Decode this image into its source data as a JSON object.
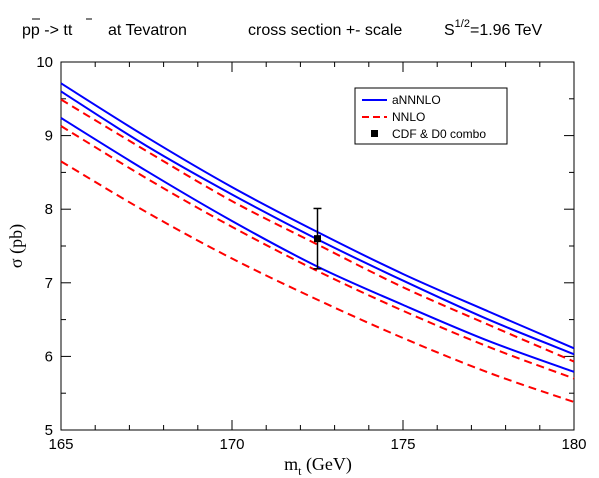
{
  "chart_data": {
    "type": "line",
    "title": {
      "process_prefix": "p",
      "process_pbar": "p",
      "process_arrow": " -> t",
      "process_tbar": "t",
      "collider": "at  Tevatron",
      "description": "cross section +- scale",
      "energy_base": "S",
      "energy_exp": "1/2",
      "energy_value": "=1.96 TeV"
    },
    "xlabel_main": "m",
    "xlabel_sub": "t",
    "xlabel_unit": " (GeV)",
    "ylabel": "σ (pb)",
    "xlim": [
      165,
      180
    ],
    "ylim": [
      5,
      10
    ],
    "x_ticks": [
      "165",
      "170",
      "175",
      "180"
    ],
    "y_ticks": [
      "5",
      "6",
      "7",
      "8",
      "9",
      "10"
    ],
    "legend_position": "top-right",
    "x": [
      165,
      167.5,
      170,
      172.5,
      175,
      177.5,
      180
    ],
    "series": [
      {
        "name": "aNNNLO",
        "style": "solid",
        "color": "#0000ff",
        "values": [
          9.71,
          8.98,
          8.3,
          7.69,
          7.12,
          6.61,
          6.11
        ]
      },
      {
        "name": "",
        "style": "solid",
        "color": "#0000ff",
        "values": [
          9.6,
          8.86,
          8.2,
          7.59,
          7.03,
          6.5,
          6.03
        ]
      },
      {
        "name": "",
        "style": "solid",
        "color": "#0000ff",
        "values": [
          9.24,
          8.52,
          7.84,
          7.22,
          6.7,
          6.21,
          5.79
        ]
      },
      {
        "name": "NNLO",
        "style": "dashed",
        "color": "#ff0000",
        "values": [
          9.49,
          8.79,
          8.11,
          7.52,
          6.94,
          6.43,
          5.93
        ]
      },
      {
        "name": "",
        "style": "dashed",
        "color": "#ff0000",
        "values": [
          9.13,
          8.42,
          7.76,
          7.16,
          6.62,
          6.13,
          5.7
        ]
      },
      {
        "name": "",
        "style": "dashed",
        "color": "#ff0000",
        "values": [
          8.65,
          7.96,
          7.33,
          6.77,
          6.25,
          5.78,
          5.38
        ]
      }
    ],
    "data_point": {
      "name": "CDF & D0 combo",
      "x": 172.5,
      "y": 7.6,
      "err_low": 0.41,
      "err_high": 0.41,
      "color": "#000000"
    }
  }
}
